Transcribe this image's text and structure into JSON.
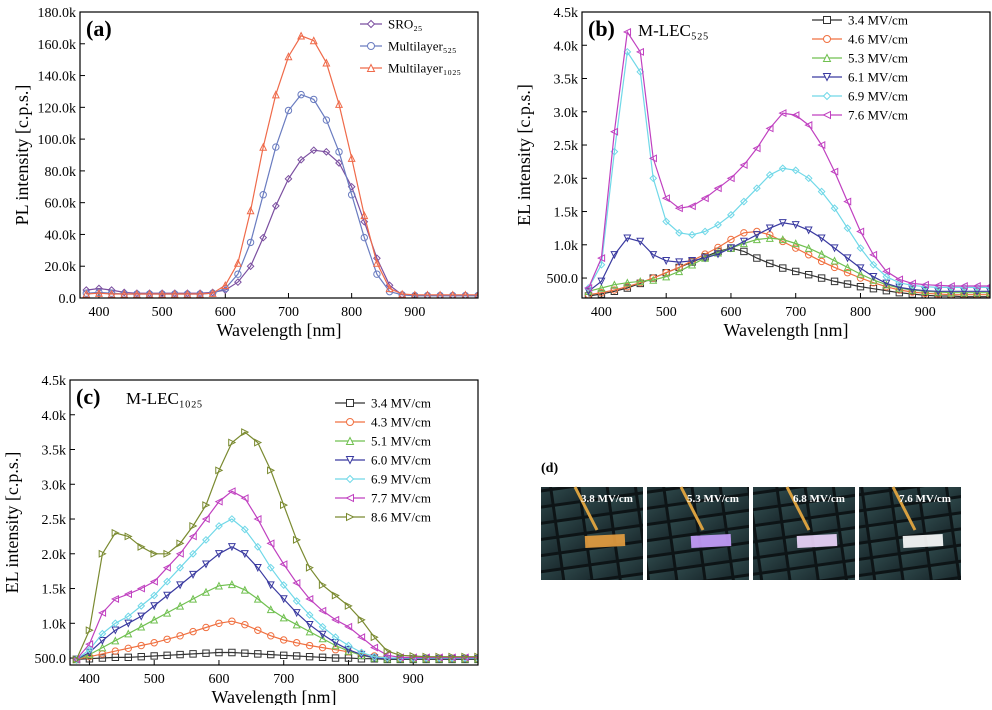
{
  "chart_data": [
    {
      "type": "line",
      "panel_label": "(a)",
      "x_label": "Wavelength [nm]",
      "y_label": "PL intensity [c.p.s.]",
      "legend": "upper right",
      "x": [
        380,
        400,
        420,
        440,
        460,
        480,
        500,
        520,
        540,
        560,
        580,
        600,
        620,
        640,
        660,
        680,
        700,
        720,
        740,
        760,
        780,
        800,
        820,
        840,
        860,
        880,
        900,
        920,
        940,
        960,
        980,
        1000
      ],
      "xlim": [
        370,
        1000
      ],
      "xticks": [
        400,
        500,
        600,
        700,
        800,
        900
      ],
      "ylim": [
        0,
        180000
      ],
      "yticks": [
        {
          "value": 0,
          "label": "0.0"
        },
        {
          "value": 20000,
          "label": "20.0k"
        },
        {
          "value": 40000,
          "label": "40.0k"
        },
        {
          "value": 60000,
          "label": "60.0k"
        },
        {
          "value": 80000,
          "label": "80.0k"
        },
        {
          "value": 100000,
          "label": "100.0k"
        },
        {
          "value": 120000,
          "label": "120.0k"
        },
        {
          "value": 140000,
          "label": "140.0k"
        },
        {
          "value": 160000,
          "label": "160.0k"
        },
        {
          "value": 180000,
          "label": "180.0k"
        }
      ],
      "series": [
        {
          "name": "SRO₂₅",
          "color": "#7b4fa0",
          "marker": "diamond",
          "values": [
            5000,
            6000,
            5000,
            3500,
            3000,
            3000,
            3000,
            3000,
            3000,
            3000,
            3500,
            5000,
            10000,
            20000,
            38000,
            58000,
            75000,
            87000,
            93000,
            92000,
            85000,
            70000,
            48000,
            25000,
            8000,
            2000,
            1500,
            1500,
            1500,
            1500,
            1500,
            1500
          ]
        },
        {
          "name": "Multilayer₅₂₅",
          "color": "#6a7cc0",
          "marker": "circle",
          "values": [
            3000,
            3500,
            3000,
            2500,
            2500,
            2500,
            2500,
            2500,
            2500,
            2500,
            3000,
            6000,
            15000,
            35000,
            65000,
            95000,
            118000,
            128000,
            125000,
            112000,
            92000,
            65000,
            38000,
            15000,
            4000,
            2000,
            1500,
            1500,
            1500,
            1500,
            1500,
            1500
          ]
        },
        {
          "name": "Multilayer₁₀₂₅",
          "color": "#ef6a4a",
          "marker": "triangle",
          "values": [
            2500,
            3000,
            2500,
            2500,
            2500,
            2500,
            2500,
            2500,
            2500,
            2500,
            3000,
            8000,
            22000,
            55000,
            95000,
            128000,
            152000,
            165000,
            162000,
            148000,
            122000,
            88000,
            52000,
            22000,
            6000,
            2500,
            2000,
            2000,
            2000,
            2000,
            2000,
            2000
          ]
        }
      ]
    },
    {
      "type": "line",
      "panel_label": "(b)",
      "annotation": "M-LEC₅₂₅",
      "x_label": "Wavelength [nm]",
      "y_label": "EL intensity [c.p.s.]",
      "legend": "upper right",
      "x": [
        380,
        400,
        420,
        440,
        460,
        480,
        500,
        520,
        540,
        560,
        580,
        600,
        620,
        640,
        660,
        680,
        700,
        720,
        740,
        760,
        780,
        800,
        820,
        840,
        860,
        880,
        900,
        920,
        940,
        960,
        980,
        1000
      ],
      "xlim": [
        370,
        1000
      ],
      "xticks": [
        400,
        500,
        600,
        700,
        800,
        900
      ],
      "ylim": [
        200,
        4500
      ],
      "yticks": [
        {
          "value": 500,
          "label": "500.0"
        },
        {
          "value": 1000,
          "label": "1.0k"
        },
        {
          "value": 1500,
          "label": "1.5k"
        },
        {
          "value": 2000,
          "label": "2.0k"
        },
        {
          "value": 2500,
          "label": "2.5k"
        },
        {
          "value": 3000,
          "label": "3.0k"
        },
        {
          "value": 3500,
          "label": "3.5k"
        },
        {
          "value": 4000,
          "label": "4.0k"
        },
        {
          "value": 4500,
          "label": "4.5k"
        }
      ],
      "series": [
        {
          "name": "3.4 MV/cm",
          "color": "#333333",
          "marker": "square",
          "values": [
            230,
            260,
            300,
            350,
            420,
            500,
            580,
            660,
            740,
            820,
            900,
            950,
            900,
            800,
            720,
            650,
            600,
            550,
            500,
            450,
            410,
            370,
            340,
            310,
            280,
            260,
            240,
            230,
            230,
            220,
            220,
            220
          ]
        },
        {
          "name": "4.6 MV/cm",
          "color": "#f07040",
          "marker": "circle",
          "values": [
            250,
            280,
            320,
            370,
            430,
            500,
            580,
            660,
            760,
            860,
            960,
            1080,
            1180,
            1200,
            1150,
            1050,
            950,
            850,
            750,
            660,
            580,
            500,
            430,
            370,
            320,
            290,
            270,
            260,
            250,
            250,
            250,
            250
          ]
        },
        {
          "name": "5.3 MV/cm",
          "color": "#70c050",
          "marker": "triangle",
          "values": [
            300,
            350,
            400,
            430,
            450,
            470,
            520,
            600,
            700,
            800,
            880,
            950,
            1020,
            1080,
            1100,
            1080,
            1020,
            950,
            860,
            760,
            660,
            560,
            470,
            400,
            350,
            320,
            300,
            290,
            280,
            280,
            280,
            280
          ]
        },
        {
          "name": "6.1 MV/cm",
          "color": "#3a3aa0",
          "marker": "down",
          "values": [
            300,
            450,
            850,
            1100,
            1050,
            850,
            760,
            740,
            760,
            800,
            860,
            950,
            1050,
            1150,
            1250,
            1330,
            1300,
            1220,
            1100,
            950,
            800,
            650,
            520,
            420,
            360,
            330,
            310,
            300,
            300,
            300,
            300,
            300
          ]
        },
        {
          "name": "6.9 MV/cm",
          "color": "#70d8e8",
          "marker": "diamond",
          "values": [
            350,
            700,
            2400,
            3900,
            3600,
            2000,
            1350,
            1180,
            1150,
            1200,
            1300,
            1450,
            1650,
            1850,
            2050,
            2150,
            2120,
            2000,
            1800,
            1550,
            1250,
            950,
            700,
            520,
            430,
            390,
            370,
            360,
            360,
            360,
            360,
            360
          ]
        },
        {
          "name": "7.6 MV/cm",
          "color": "#c040c0",
          "marker": "left",
          "values": [
            350,
            800,
            2700,
            4200,
            3900,
            2300,
            1700,
            1550,
            1580,
            1700,
            1850,
            2000,
            2200,
            2450,
            2750,
            2980,
            2950,
            2800,
            2500,
            2100,
            1650,
            1200,
            850,
            600,
            480,
            420,
            400,
            390,
            380,
            380,
            380,
            380
          ]
        }
      ]
    },
    {
      "type": "line",
      "panel_label": "(c)",
      "annotation": "M-LEC₁₀₂₅",
      "x_label": "Wavelength [nm]",
      "y_label": "EL intensity [c.p.s.]",
      "legend": "upper right",
      "x": [
        380,
        400,
        420,
        440,
        460,
        480,
        500,
        520,
        540,
        560,
        580,
        600,
        620,
        640,
        660,
        680,
        700,
        720,
        740,
        760,
        780,
        800,
        820,
        840,
        860,
        880,
        900,
        920,
        940,
        960,
        980,
        1000
      ],
      "xlim": [
        370,
        1000
      ],
      "xticks": [
        400,
        500,
        600,
        700,
        800,
        900
      ],
      "ylim": [
        400,
        4500
      ],
      "yticks": [
        {
          "value": 500,
          "label": "500.0"
        },
        {
          "value": 1000,
          "label": "1.0k"
        },
        {
          "value": 1500,
          "label": "1.5k"
        },
        {
          "value": 2000,
          "label": "2.0k"
        },
        {
          "value": 2500,
          "label": "2.5k"
        },
        {
          "value": 3000,
          "label": "3.0k"
        },
        {
          "value": 3500,
          "label": "3.5k"
        },
        {
          "value": 4000,
          "label": "4.0k"
        },
        {
          "value": 4500,
          "label": "4.5k"
        }
      ],
      "series": [
        {
          "name": "3.4 MV/cm",
          "color": "#333333",
          "marker": "square",
          "values": [
            480,
            490,
            500,
            510,
            510,
            520,
            530,
            540,
            550,
            560,
            570,
            580,
            580,
            570,
            560,
            550,
            540,
            530,
            520,
            510,
            500,
            500,
            490,
            490,
            480,
            480,
            480,
            480,
            480,
            480,
            480,
            480
          ]
        },
        {
          "name": "4.3 MV/cm",
          "color": "#f07040",
          "marker": "circle",
          "values": [
            480,
            520,
            560,
            600,
            640,
            680,
            720,
            770,
            820,
            880,
            940,
            1000,
            1030,
            980,
            900,
            820,
            760,
            720,
            680,
            650,
            620,
            590,
            560,
            530,
            500,
            490,
            490,
            490,
            490,
            490,
            490,
            490
          ]
        },
        {
          "name": "5.1 MV/cm",
          "color": "#70c050",
          "marker": "triangle",
          "values": [
            480,
            550,
            650,
            750,
            850,
            950,
            1050,
            1150,
            1250,
            1350,
            1450,
            1540,
            1560,
            1480,
            1350,
            1200,
            1080,
            980,
            880,
            780,
            680,
            600,
            540,
            500,
            490,
            490,
            490,
            490,
            490,
            490,
            490,
            490
          ]
        },
        {
          "name": "6.0 MV/cm",
          "color": "#3a3aa0",
          "marker": "down",
          "values": [
            480,
            580,
            750,
            900,
            1000,
            1100,
            1250,
            1400,
            1550,
            1700,
            1850,
            2000,
            2100,
            2000,
            1800,
            1550,
            1350,
            1150,
            980,
            840,
            720,
            620,
            550,
            500,
            490,
            490,
            490,
            490,
            490,
            490,
            490,
            490
          ]
        },
        {
          "name": "6.9 MV/cm",
          "color": "#70d8e8",
          "marker": "diamond",
          "values": [
            480,
            620,
            850,
            1000,
            1100,
            1250,
            1400,
            1600,
            1800,
            2000,
            2200,
            2400,
            2500,
            2350,
            2100,
            1800,
            1550,
            1320,
            1120,
            950,
            800,
            680,
            580,
            520,
            500,
            500,
            500,
            500,
            500,
            500,
            500,
            500
          ]
        },
        {
          "name": "7.7 MV/cm",
          "color": "#c040c0",
          "marker": "left",
          "values": [
            480,
            700,
            1150,
            1350,
            1420,
            1500,
            1600,
            1800,
            2000,
            2250,
            2500,
            2750,
            2900,
            2800,
            2500,
            2150,
            1850,
            1580,
            1350,
            1180,
            1050,
            950,
            800,
            650,
            540,
            510,
            510,
            510,
            510,
            510,
            510,
            510
          ]
        },
        {
          "name": "8.6 MV/cm",
          "color": "#7a8a30",
          "marker": "right",
          "values": [
            480,
            900,
            2000,
            2300,
            2250,
            2100,
            2000,
            2000,
            2150,
            2400,
            2700,
            3200,
            3600,
            3750,
            3600,
            3200,
            2700,
            2200,
            1800,
            1550,
            1400,
            1250,
            1050,
            800,
            600,
            540,
            530,
            520,
            520,
            520,
            520,
            520
          ]
        }
      ]
    }
  ],
  "panel_d": {
    "label": "(d)",
    "captions": [
      "3.8 MV/cm",
      "5.3 MV/cm",
      "6.8 MV/cm",
      "7.6 MV/cm"
    ]
  }
}
